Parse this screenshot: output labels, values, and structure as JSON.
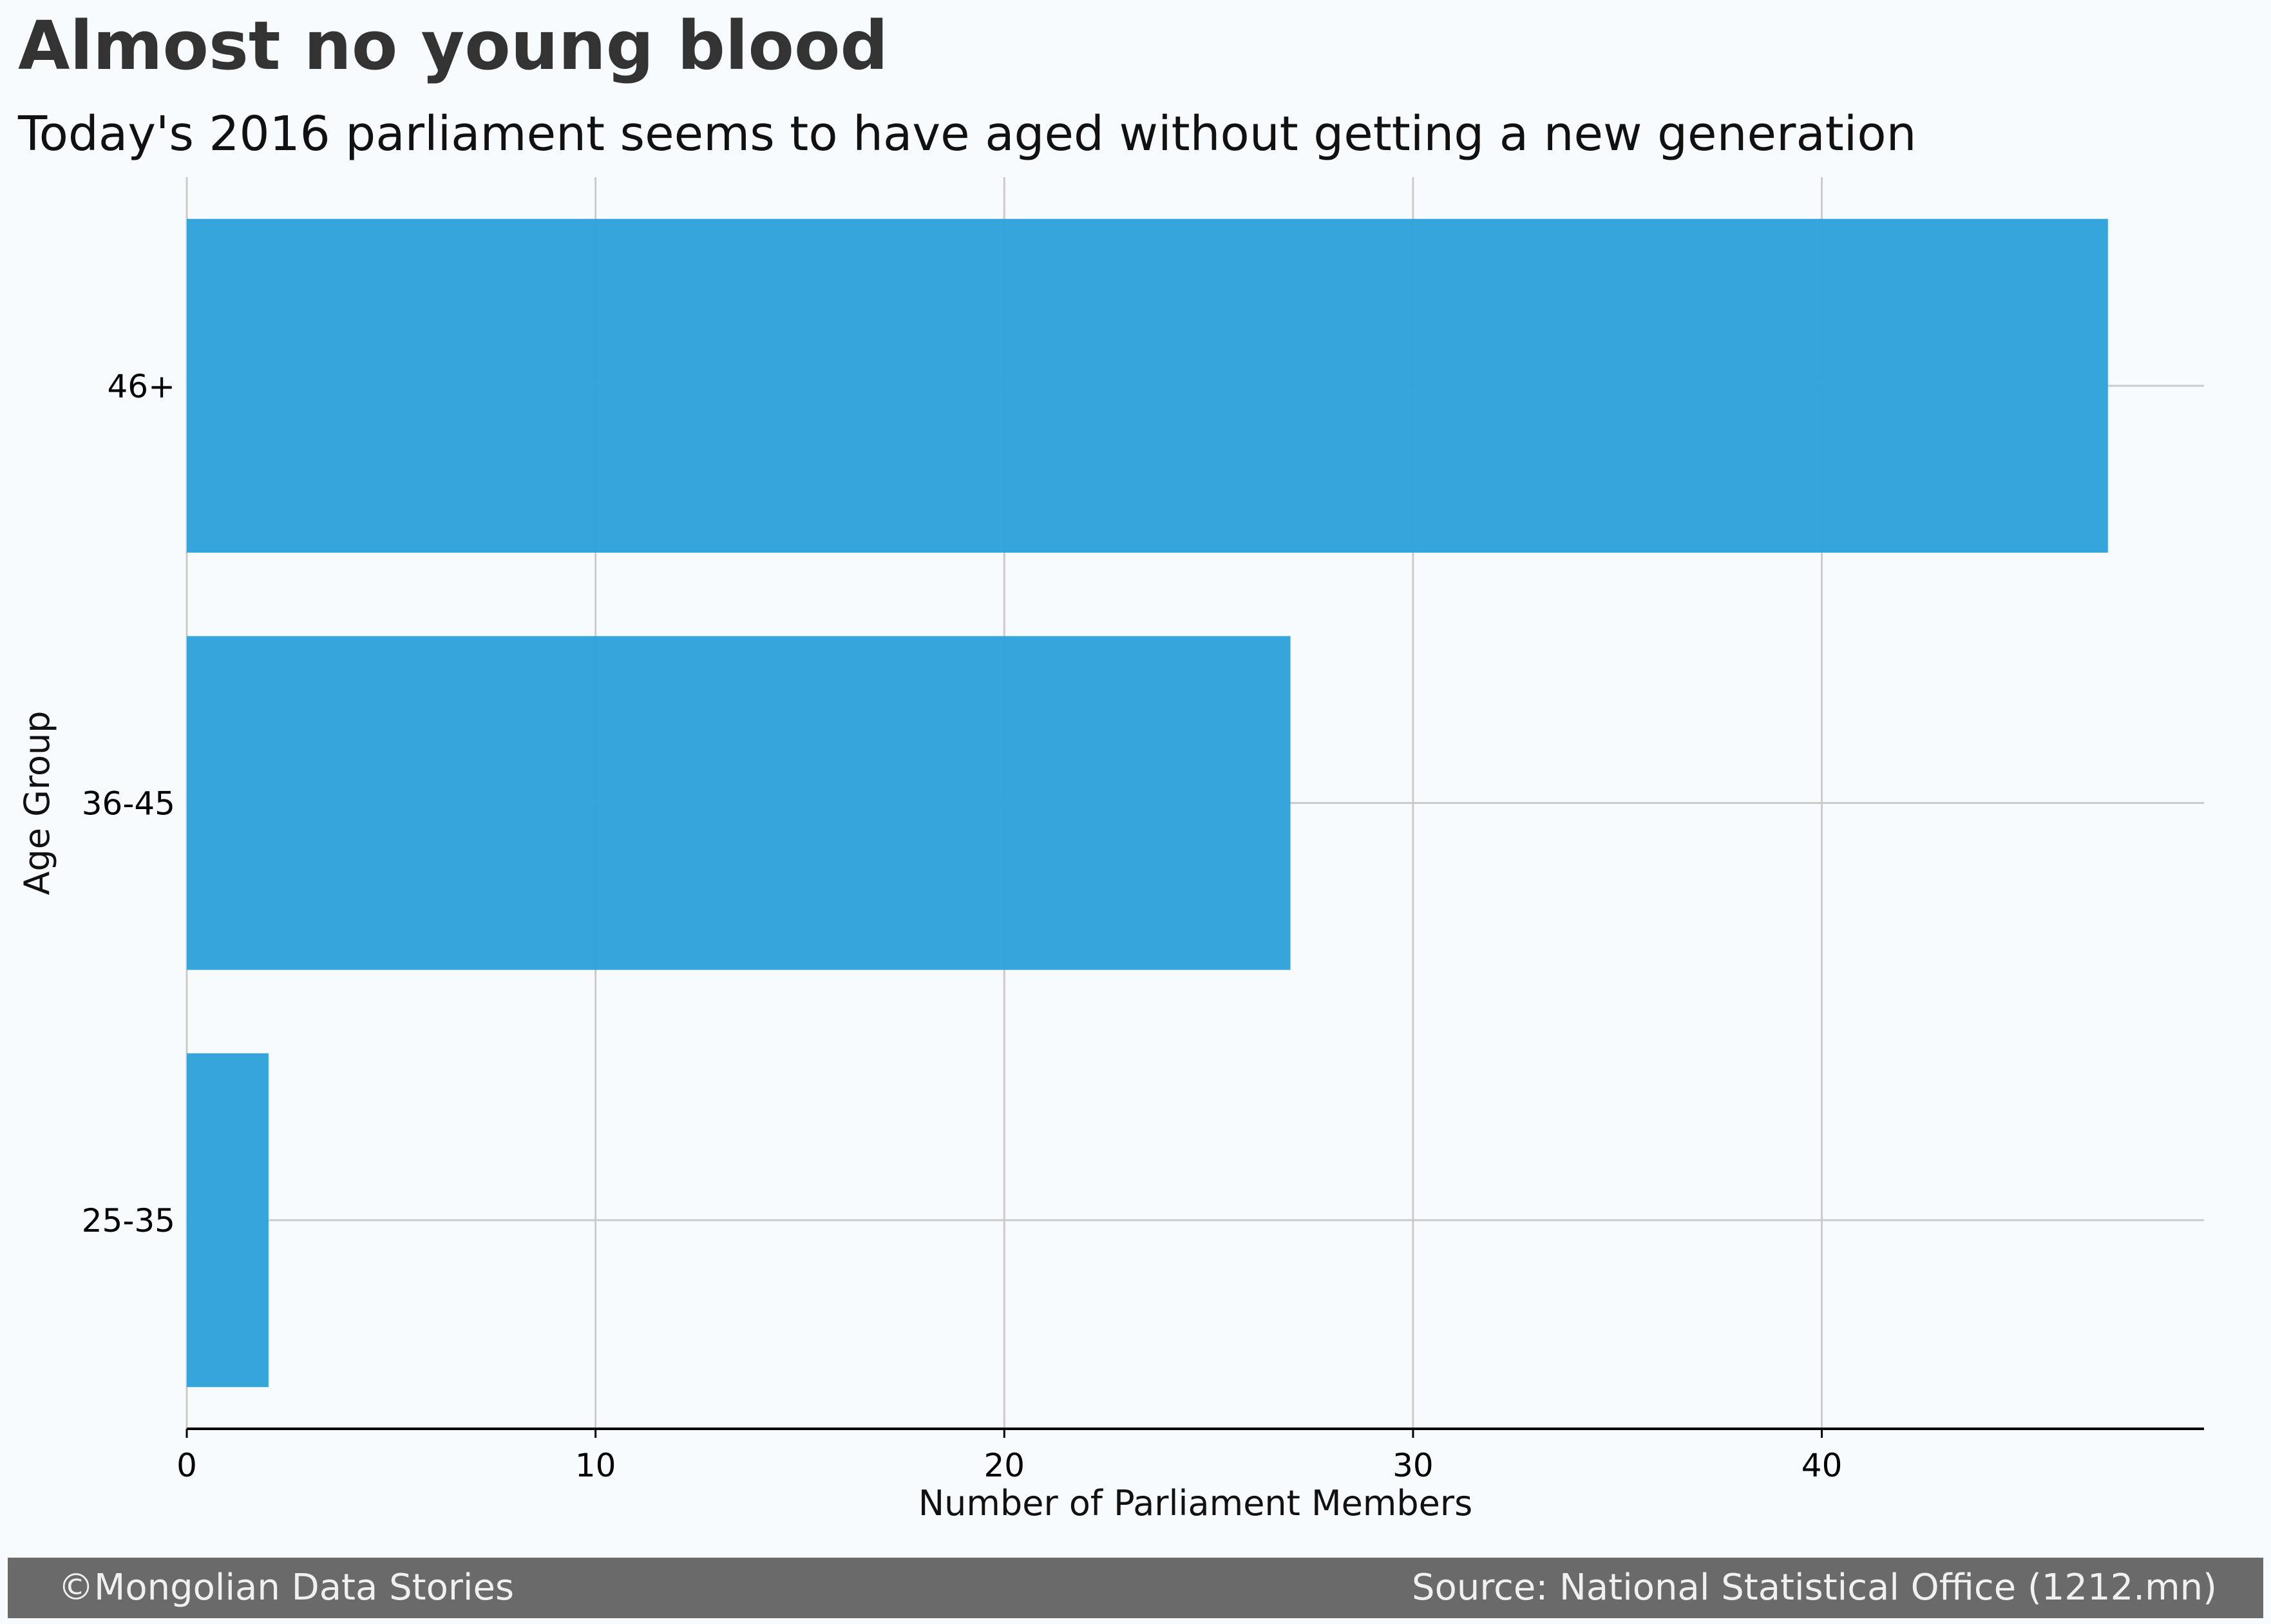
{
  "header": {
    "title": "Almost no young blood",
    "subtitle": "Today's 2016 parliament seems to have aged without getting a new generation"
  },
  "chart_data": {
    "type": "bar",
    "orientation": "horizontal",
    "title": "Almost no young blood",
    "subtitle": "Today's 2016 parliament seems to have aged without getting a new generation",
    "xlabel": "Number of Parliament Members",
    "ylabel": "Age Group",
    "categories": [
      "25-35",
      "36-45",
      "46+"
    ],
    "values": [
      2,
      27,
      47
    ],
    "xlim": [
      0,
      49.35
    ],
    "xticks": [
      0,
      10,
      20,
      30,
      40
    ],
    "grid": true,
    "legend": "none",
    "colors": {
      "bar": "#30a2da",
      "grid": "#cbcbcb",
      "axis": "#000000"
    }
  },
  "footer": {
    "left": "©Mongolian Data Stories",
    "right": "Source: National Statistical Office (1212.mn)"
  }
}
